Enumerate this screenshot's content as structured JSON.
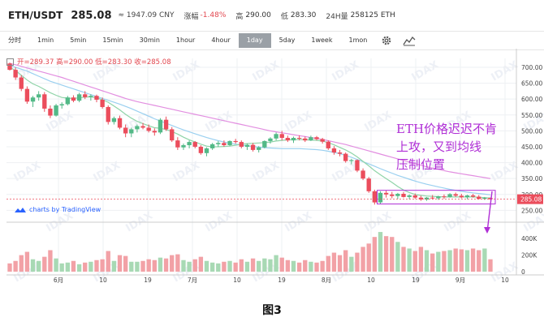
{
  "header": {
    "pair": "ETH/USDT",
    "price": "285.08",
    "cny": "≈ 1947.09 CNY",
    "change_label": "涨幅",
    "change_value": "-1.48%",
    "high_label": "高",
    "high_value": "290.00",
    "low_label": "低",
    "low_value": "283.30",
    "vol_label": "24H量",
    "vol_value": "258125 ETH"
  },
  "toolbar": {
    "items": [
      "分时",
      "1min",
      "5min",
      "15min",
      "30min",
      "1hour",
      "4hour",
      "1day",
      "5day",
      "1week",
      "1mon"
    ],
    "active": "1day",
    "settings_icon": "gear-icon",
    "indicator_icon": "chart-indicator-icon"
  },
  "legend": {
    "open": "开=289.37",
    "high": "高=290.00",
    "low": "低=283.30",
    "close": "收=285.08"
  },
  "tv_badge": "charts by TradingView",
  "annotation": {
    "line1": "ETH价格迟迟不肯",
    "line2": "上攻，又到均线",
    "line3": "压制位置"
  },
  "caption": "图3",
  "watermark": "IDAX",
  "colors": {
    "up": "#53b987",
    "down": "#eb4d5c",
    "ma_fast": "#8fd4a8",
    "ma_mid": "#9ad0f0",
    "ma_slow": "#e28ee0",
    "annotation": "#b02fd6",
    "last_price_tag": "#eb4d5c"
  },
  "chart_data": {
    "type": "candlestick",
    "price_axis": {
      "ticks": [
        "700.00",
        "650.00",
        "600.00",
        "550.00",
        "500.00",
        "450.00",
        "400.00",
        "350.00",
        "300.00",
        "250.00"
      ],
      "ylim": [
        228,
        728
      ]
    },
    "last_price_label": "285.08",
    "volume_axis": {
      "ticks": [
        "400K",
        "200K",
        "0"
      ],
      "ylim": [
        0,
        520000
      ]
    },
    "x_ticks": [
      "6月",
      "10",
      "19",
      "7月",
      "10",
      "19",
      "8月",
      "10",
      "19",
      "9月",
      "10"
    ],
    "candles": [
      [
        712,
        715,
        690,
        692
      ],
      [
        692,
        700,
        660,
        668
      ],
      [
        668,
        675,
        625,
        632
      ],
      [
        632,
        640,
        585,
        592
      ],
      [
        592,
        610,
        575,
        605
      ],
      [
        605,
        625,
        595,
        615
      ],
      [
        615,
        622,
        560,
        570
      ],
      [
        570,
        580,
        540,
        548
      ],
      [
        548,
        585,
        545,
        580
      ],
      [
        580,
        590,
        570,
        584
      ],
      [
        584,
        610,
        580,
        605
      ],
      [
        605,
        612,
        590,
        595
      ],
      [
        595,
        620,
        590,
        615
      ],
      [
        615,
        625,
        600,
        606
      ],
      [
        606,
        615,
        595,
        610
      ],
      [
        610,
        614,
        590,
        598
      ],
      [
        598,
        605,
        570,
        575
      ],
      [
        575,
        580,
        520,
        528
      ],
      [
        528,
        545,
        520,
        540
      ],
      [
        540,
        548,
        505,
        510
      ],
      [
        510,
        520,
        480,
        492
      ],
      [
        492,
        510,
        480,
        505
      ],
      [
        505,
        520,
        495,
        515
      ],
      [
        515,
        525,
        505,
        510
      ],
      [
        510,
        520,
        495,
        500
      ],
      [
        500,
        508,
        485,
        495
      ],
      [
        495,
        540,
        490,
        535
      ],
      [
        535,
        545,
        500,
        505
      ],
      [
        505,
        512,
        465,
        470
      ],
      [
        470,
        480,
        440,
        448
      ],
      [
        448,
        460,
        440,
        455
      ],
      [
        455,
        470,
        445,
        465
      ],
      [
        465,
        468,
        445,
        450
      ],
      [
        450,
        455,
        425,
        430
      ],
      [
        430,
        448,
        420,
        445
      ],
      [
        445,
        462,
        440,
        458
      ],
      [
        458,
        468,
        450,
        462
      ],
      [
        462,
        470,
        450,
        455
      ],
      [
        455,
        470,
        452,
        468
      ],
      [
        468,
        475,
        460,
        465
      ],
      [
        465,
        470,
        445,
        450
      ],
      [
        450,
        460,
        440,
        456
      ],
      [
        456,
        462,
        435,
        440
      ],
      [
        440,
        452,
        432,
        448
      ],
      [
        448,
        470,
        445,
        468
      ],
      [
        468,
        480,
        460,
        476
      ],
      [
        476,
        495,
        470,
        490
      ],
      [
        490,
        500,
        470,
        478
      ],
      [
        478,
        485,
        465,
        470
      ],
      [
        470,
        482,
        462,
        478
      ],
      [
        478,
        486,
        470,
        476
      ],
      [
        476,
        482,
        465,
        470
      ],
      [
        470,
        485,
        468,
        480
      ],
      [
        480,
        484,
        470,
        474
      ],
      [
        474,
        478,
        460,
        466
      ],
      [
        466,
        470,
        440,
        445
      ],
      [
        445,
        452,
        425,
        432
      ],
      [
        432,
        440,
        420,
        428
      ],
      [
        428,
        432,
        400,
        405
      ],
      [
        405,
        412,
        395,
        408
      ],
      [
        408,
        410,
        370,
        375
      ],
      [
        375,
        382,
        345,
        350
      ],
      [
        350,
        355,
        305,
        310
      ],
      [
        310,
        315,
        268,
        275
      ],
      [
        275,
        310,
        270,
        305
      ],
      [
        305,
        312,
        290,
        300
      ],
      [
        300,
        308,
        288,
        295
      ],
      [
        295,
        305,
        286,
        302
      ],
      [
        302,
        308,
        290,
        292
      ],
      [
        292,
        300,
        285,
        297
      ],
      [
        297,
        303,
        286,
        290
      ],
      [
        290,
        296,
        280,
        284
      ],
      [
        284,
        292,
        280,
        290
      ],
      [
        290,
        298,
        284,
        288
      ],
      [
        288,
        296,
        283,
        294
      ],
      [
        294,
        300,
        286,
        292
      ],
      [
        292,
        304,
        290,
        301
      ],
      [
        301,
        306,
        292,
        296
      ],
      [
        296,
        302,
        288,
        291
      ],
      [
        291,
        299,
        285,
        297
      ],
      [
        297,
        302,
        290,
        293
      ],
      [
        293,
        298,
        284,
        286
      ],
      [
        286,
        292,
        283,
        289
      ],
      [
        289,
        290,
        283,
        285
      ]
    ],
    "volumes": [
      100000,
      130000,
      200000,
      240000,
      150000,
      130000,
      180000,
      260000,
      160000,
      100000,
      110000,
      130000,
      90000,
      110000,
      120000,
      140000,
      150000,
      250000,
      130000,
      200000,
      190000,
      120000,
      120000,
      130000,
      150000,
      140000,
      170000,
      160000,
      200000,
      210000,
      140000,
      120000,
      150000,
      180000,
      130000,
      110000,
      100000,
      120000,
      130000,
      110000,
      150000,
      120000,
      160000,
      130000,
      160000,
      150000,
      200000,
      170000,
      140000,
      130000,
      110000,
      140000,
      120000,
      110000,
      130000,
      190000,
      230000,
      200000,
      260000,
      180000,
      230000,
      300000,
      340000,
      420000,
      480000,
      430000,
      420000,
      360000,
      300000,
      280000,
      250000,
      300000,
      260000,
      220000,
      240000,
      250000,
      260000,
      280000,
      270000,
      260000,
      280000,
      260000,
      280000,
      150000
    ],
    "ma_fast": [
      700,
      690,
      675,
      660,
      648,
      640,
      630,
      620,
      612,
      605,
      603,
      602,
      604,
      606,
      607,
      604,
      598,
      590,
      578,
      566,
      552,
      540,
      530,
      523,
      516,
      510,
      508,
      504,
      498,
      490,
      480,
      472,
      465,
      458,
      452,
      450,
      450,
      451,
      452,
      455,
      458,
      460,
      461,
      462,
      463,
      465,
      468,
      470,
      472,
      472,
      473,
      472,
      471,
      470,
      468,
      463,
      456,
      448,
      440,
      430,
      418,
      404,
      390,
      375,
      362,
      350,
      338,
      325,
      314,
      306,
      300,
      297,
      295,
      294,
      293,
      292,
      292,
      292,
      292,
      292,
      292,
      291,
      290,
      289
    ],
    "ma_mid": [
      705,
      700,
      694,
      688,
      680,
      672,
      664,
      656,
      650,
      644,
      638,
      632,
      626,
      620,
      614,
      608,
      602,
      596,
      590,
      584,
      577,
      570,
      562,
      554,
      546,
      538,
      531,
      524,
      517,
      510,
      503,
      497,
      491,
      485,
      479,
      474,
      469,
      465,
      461,
      458,
      455,
      453,
      451,
      449,
      447,
      446,
      445,
      444,
      444,
      444,
      444,
      443,
      442,
      441,
      439,
      436,
      432,
      428,
      423,
      417,
      410,
      403,
      396,
      389,
      381,
      374,
      367,
      360,
      354,
      348,
      342,
      337,
      332,
      328,
      324,
      320,
      316,
      313,
      310,
      307,
      305,
      303,
      301,
      299
    ],
    "ma_slow": [
      712,
      708,
      703,
      698,
      693,
      688,
      683,
      678,
      673,
      668,
      662,
      656,
      650,
      644,
      638,
      632,
      626,
      620,
      614,
      608,
      602,
      597,
      592,
      588,
      584,
      580,
      576,
      572,
      568,
      564,
      560,
      556,
      552,
      548,
      544,
      540,
      536,
      532,
      528,
      524,
      520,
      516,
      512,
      508,
      504,
      500,
      497,
      494,
      491,
      488,
      485,
      482,
      479,
      476,
      473,
      469,
      465,
      461,
      457,
      452,
      447,
      442,
      437,
      432,
      427,
      422,
      417,
      412,
      407,
      402,
      397,
      392,
      387,
      383,
      379,
      375,
      371,
      368,
      365,
      362,
      359,
      356,
      353,
      350
    ]
  }
}
